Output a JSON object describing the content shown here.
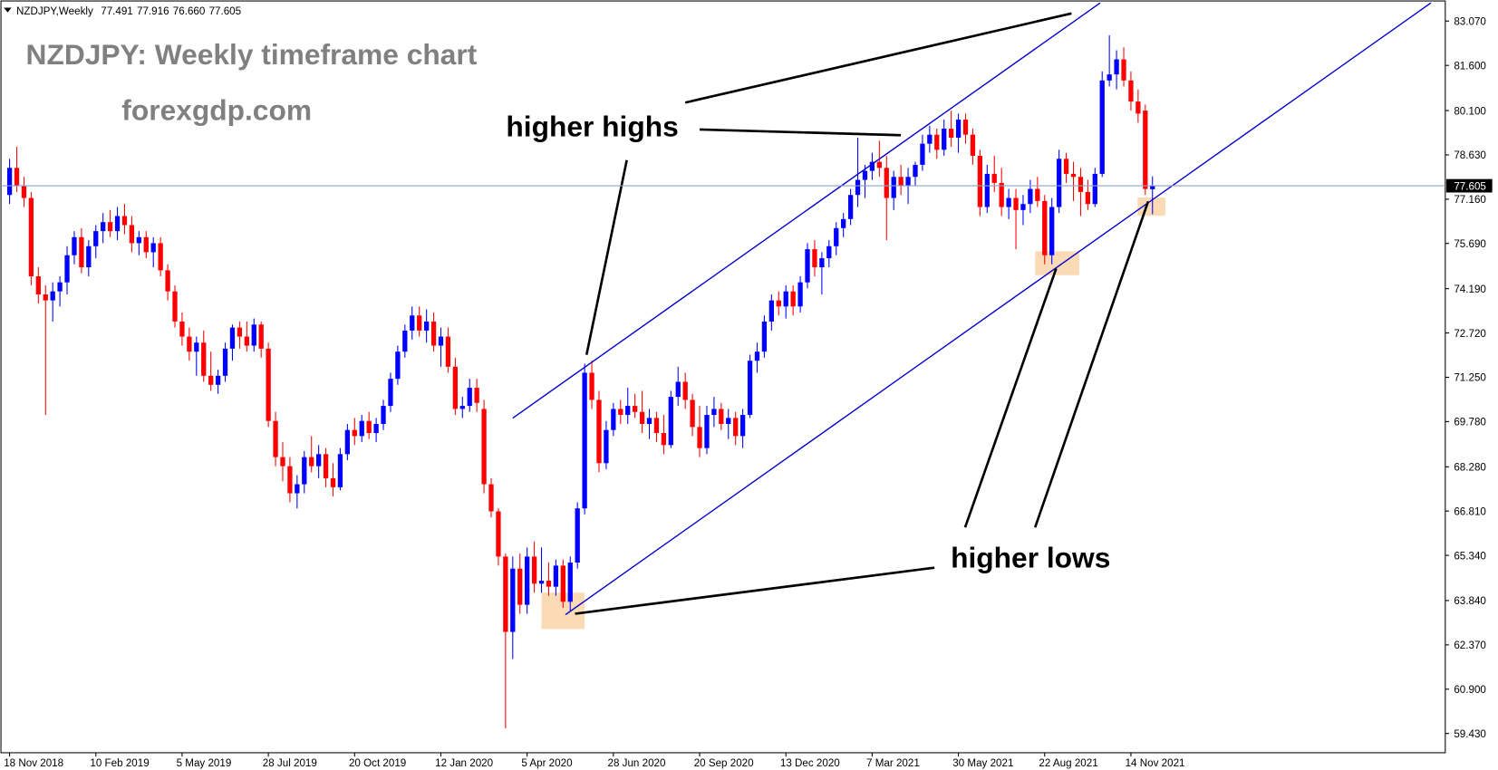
{
  "chart_data": {
    "type": "candlestick",
    "symbol": "NZDJPY,Weekly",
    "ohlc_labels": [
      "77.491",
      "77.916",
      "76.660",
      "77.605"
    ],
    "title": "NZDJPY: Weekly timeframe chart",
    "subtitle": "forexgdp.com",
    "annotations": [
      "higher highs",
      "higher lows"
    ],
    "up_color": "#0000ff",
    "down_color": "#ff0000",
    "ylim": [
      58.79,
      83.77
    ],
    "yticks": [
      {
        "value": 83.07,
        "label": "83.070"
      },
      {
        "value": 81.6,
        "label": "81.600"
      },
      {
        "value": 80.1,
        "label": "80.100"
      },
      {
        "value": 78.63,
        "label": "78.630"
      },
      {
        "value": 77.16,
        "label": "77.160"
      },
      {
        "value": 75.69,
        "label": "75.690"
      },
      {
        "value": 74.19,
        "label": "74.190"
      },
      {
        "value": 72.72,
        "label": "72.720"
      },
      {
        "value": 71.25,
        "label": "71.250"
      },
      {
        "value": 69.78,
        "label": "69.780"
      },
      {
        "value": 68.28,
        "label": "68.280"
      },
      {
        "value": 66.81,
        "label": "66.810"
      },
      {
        "value": 65.34,
        "label": "65.340"
      },
      {
        "value": 63.84,
        "label": "63.840"
      },
      {
        "value": 62.37,
        "label": "62.370"
      },
      {
        "value": 60.9,
        "label": "60.900"
      },
      {
        "value": 59.43,
        "label": "59.430"
      }
    ],
    "current_price": {
      "value": 77.605,
      "label": "77.605"
    },
    "categories": [
      "18 Nov 2018",
      null,
      null,
      null,
      null,
      null,
      null,
      null,
      null,
      null,
      null,
      null,
      "10 Feb 2019",
      null,
      null,
      null,
      null,
      null,
      null,
      null,
      null,
      null,
      null,
      null,
      "5 May 2019",
      null,
      null,
      null,
      null,
      null,
      null,
      null,
      null,
      null,
      null,
      null,
      "28 Jul 2019",
      null,
      null,
      null,
      null,
      null,
      null,
      null,
      null,
      null,
      null,
      null,
      "20 Oct 2019",
      null,
      null,
      null,
      null,
      null,
      null,
      null,
      null,
      null,
      null,
      null,
      "12 Jan 2020",
      null,
      null,
      null,
      null,
      null,
      null,
      null,
      null,
      null,
      null,
      null,
      "5 Apr 2020",
      null,
      null,
      null,
      null,
      null,
      null,
      null,
      null,
      null,
      null,
      null,
      "28 Jun 2020",
      null,
      null,
      null,
      null,
      null,
      null,
      null,
      null,
      null,
      null,
      null,
      "20 Sep 2020",
      null,
      null,
      null,
      null,
      null,
      null,
      null,
      null,
      null,
      null,
      null,
      "13 Dec 2020",
      null,
      null,
      null,
      null,
      null,
      null,
      null,
      null,
      null,
      null,
      null,
      "7 Mar 2021",
      null,
      null,
      null,
      null,
      null,
      null,
      null,
      null,
      null,
      null,
      null,
      "30 May 2021",
      null,
      null,
      null,
      null,
      null,
      null,
      null,
      null,
      null,
      null,
      null,
      "22 Aug 2021",
      null,
      null,
      null,
      null,
      null,
      null,
      null,
      null,
      null,
      null,
      null,
      "14 Nov 2021",
      null,
      null,
      null
    ],
    "candles": [
      [
        77.3,
        78.5,
        77.0,
        78.2
      ],
      [
        78.2,
        78.9,
        77.4,
        77.6
      ],
      [
        77.6,
        77.9,
        76.9,
        77.2
      ],
      [
        77.2,
        77.4,
        74.3,
        74.6
      ],
      [
        74.6,
        74.9,
        73.7,
        74.0
      ],
      [
        74.0,
        74.3,
        70.0,
        73.8
      ],
      [
        73.8,
        74.4,
        73.1,
        74.1
      ],
      [
        74.1,
        74.6,
        73.6,
        74.4
      ],
      [
        74.4,
        75.6,
        74.0,
        75.3
      ],
      [
        75.3,
        76.1,
        75.0,
        75.9
      ],
      [
        75.9,
        76.2,
        74.7,
        74.9
      ],
      [
        74.9,
        75.8,
        74.6,
        75.6
      ],
      [
        75.6,
        76.3,
        75.2,
        76.1
      ],
      [
        76.1,
        76.7,
        75.7,
        76.4
      ],
      [
        76.4,
        76.8,
        75.9,
        76.1
      ],
      [
        76.1,
        76.9,
        75.8,
        76.6
      ],
      [
        76.6,
        77.0,
        76.0,
        76.3
      ],
      [
        76.3,
        76.6,
        75.4,
        75.7
      ],
      [
        75.7,
        76.1,
        75.3,
        75.9
      ],
      [
        75.9,
        76.1,
        75.2,
        75.4
      ],
      [
        75.4,
        75.9,
        74.9,
        75.7
      ],
      [
        75.7,
        75.9,
        74.6,
        74.8
      ],
      [
        74.8,
        75.0,
        73.8,
        74.1
      ],
      [
        74.1,
        74.3,
        72.9,
        73.1
      ],
      [
        73.1,
        73.4,
        72.3,
        72.6
      ],
      [
        72.6,
        72.9,
        71.8,
        72.1
      ],
      [
        72.1,
        72.6,
        71.3,
        72.4
      ],
      [
        72.4,
        72.8,
        71.1,
        71.3
      ],
      [
        71.3,
        72.1,
        70.8,
        71.0
      ],
      [
        71.0,
        71.5,
        70.7,
        71.3
      ],
      [
        71.3,
        72.4,
        71.1,
        72.2
      ],
      [
        72.2,
        73.0,
        71.8,
        72.9
      ],
      [
        72.9,
        73.1,
        72.2,
        72.6
      ],
      [
        72.6,
        73.1,
        72.1,
        72.3
      ],
      [
        72.3,
        73.2,
        72.1,
        73.0
      ],
      [
        73.0,
        73.1,
        71.9,
        72.2
      ],
      [
        72.2,
        72.4,
        69.6,
        69.8
      ],
      [
        69.8,
        70.1,
        68.3,
        68.6
      ],
      [
        68.6,
        69.1,
        67.8,
        68.3
      ],
      [
        68.3,
        68.6,
        67.1,
        67.4
      ],
      [
        67.4,
        68.0,
        66.9,
        67.7
      ],
      [
        67.7,
        68.8,
        67.4,
        68.6
      ],
      [
        68.6,
        69.3,
        68.1,
        68.3
      ],
      [
        68.3,
        69.0,
        67.9,
        68.7
      ],
      [
        68.7,
        68.9,
        67.6,
        67.9
      ],
      [
        67.9,
        68.4,
        67.3,
        67.6
      ],
      [
        67.6,
        68.9,
        67.5,
        68.7
      ],
      [
        68.7,
        69.7,
        68.5,
        69.5
      ],
      [
        69.5,
        69.9,
        69.0,
        69.3
      ],
      [
        69.3,
        70.0,
        69.1,
        69.8
      ],
      [
        69.8,
        70.1,
        69.2,
        69.4
      ],
      [
        69.4,
        69.9,
        69.1,
        69.7
      ],
      [
        69.7,
        70.5,
        69.5,
        70.3
      ],
      [
        70.3,
        71.4,
        70.1,
        71.2
      ],
      [
        71.2,
        72.3,
        71.0,
        72.1
      ],
      [
        72.1,
        73.0,
        71.9,
        72.8
      ],
      [
        72.8,
        73.6,
        72.5,
        73.3
      ],
      [
        73.3,
        73.6,
        72.6,
        72.8
      ],
      [
        72.8,
        73.5,
        72.4,
        73.1
      ],
      [
        73.1,
        73.4,
        72.1,
        72.3
      ],
      [
        72.3,
        72.9,
        71.6,
        72.6
      ],
      [
        72.6,
        72.9,
        71.4,
        71.6
      ],
      [
        71.6,
        71.9,
        70.0,
        70.2
      ],
      [
        70.2,
        70.6,
        69.9,
        70.3
      ],
      [
        70.3,
        71.2,
        70.1,
        70.9
      ],
      [
        70.9,
        71.2,
        70.1,
        70.4
      ],
      [
        70.2,
        70.5,
        67.4,
        67.7
      ],
      [
        67.7,
        67.9,
        66.6,
        66.8
      ],
      [
        66.8,
        66.9,
        65.0,
        65.3
      ],
      [
        65.3,
        65.4,
        59.6,
        62.8
      ],
      [
        62.8,
        65.3,
        61.9,
        64.9
      ],
      [
        64.9,
        65.4,
        63.4,
        63.7
      ],
      [
        63.7,
        65.6,
        63.4,
        65.3
      ],
      [
        65.3,
        65.8,
        64.1,
        64.4
      ],
      [
        64.4,
        65.6,
        64.1,
        64.5
      ],
      [
        64.5,
        65.1,
        64.0,
        64.3
      ],
      [
        64.3,
        65.2,
        64.0,
        65.0
      ],
      [
        65.0,
        65.2,
        63.6,
        63.8
      ],
      [
        63.8,
        65.3,
        63.5,
        65.1
      ],
      [
        65.1,
        67.1,
        64.9,
        66.9
      ],
      [
        66.9,
        71.7,
        66.7,
        71.4
      ],
      [
        71.4,
        71.8,
        70.2,
        70.5
      ],
      [
        70.5,
        70.8,
        68.1,
        68.4
      ],
      [
        68.4,
        69.8,
        68.2,
        69.5
      ],
      [
        69.5,
        70.4,
        69.3,
        70.2
      ],
      [
        70.2,
        70.5,
        69.7,
        70.0
      ],
      [
        70.0,
        70.9,
        69.7,
        70.3
      ],
      [
        70.3,
        70.7,
        69.9,
        70.1
      ],
      [
        70.1,
        70.8,
        69.4,
        69.7
      ],
      [
        69.7,
        70.2,
        69.2,
        69.9
      ],
      [
        69.9,
        70.1,
        69.1,
        69.4
      ],
      [
        69.4,
        70.0,
        68.7,
        69.0
      ],
      [
        69.0,
        70.8,
        68.9,
        70.6
      ],
      [
        70.6,
        71.6,
        70.3,
        71.1
      ],
      [
        71.1,
        71.4,
        70.2,
        70.5
      ],
      [
        70.5,
        70.7,
        69.3,
        69.6
      ],
      [
        69.6,
        70.3,
        68.6,
        68.9
      ],
      [
        68.9,
        70.3,
        68.7,
        70.0
      ],
      [
        70.0,
        70.6,
        69.6,
        70.2
      ],
      [
        70.2,
        70.4,
        69.5,
        69.7
      ],
      [
        69.7,
        70.2,
        69.2,
        69.9
      ],
      [
        69.9,
        70.1,
        69.0,
        69.3
      ],
      [
        69.3,
        70.2,
        68.9,
        70.0
      ],
      [
        70.0,
        72.0,
        69.9,
        71.8
      ],
      [
        71.8,
        72.4,
        71.4,
        72.1
      ],
      [
        72.1,
        73.3,
        71.9,
        73.1
      ],
      [
        73.1,
        74.0,
        72.8,
        73.8
      ],
      [
        73.8,
        74.1,
        73.3,
        73.6
      ],
      [
        73.6,
        74.3,
        73.2,
        74.1
      ],
      [
        74.1,
        74.3,
        73.3,
        73.6
      ],
      [
        73.6,
        74.6,
        73.4,
        74.4
      ],
      [
        74.4,
        75.7,
        74.2,
        75.5
      ],
      [
        75.5,
        75.8,
        74.6,
        74.9
      ],
      [
        74.9,
        75.4,
        74.0,
        75.2
      ],
      [
        75.2,
        75.8,
        74.9,
        75.6
      ],
      [
        75.6,
        76.4,
        75.3,
        76.2
      ],
      [
        76.2,
        76.7,
        75.9,
        76.5
      ],
      [
        76.5,
        77.5,
        76.3,
        77.3
      ],
      [
        77.3,
        79.2,
        76.9,
        77.8
      ],
      [
        77.8,
        78.3,
        77.2,
        78.1
      ],
      [
        78.1,
        78.7,
        77.8,
        78.4
      ],
      [
        78.4,
        79.1,
        77.9,
        78.2
      ],
      [
        78.2,
        78.6,
        75.8,
        77.2
      ],
      [
        77.2,
        78.1,
        76.8,
        77.9
      ],
      [
        77.9,
        78.3,
        77.3,
        77.6
      ],
      [
        77.6,
        78.2,
        77.0,
        77.9
      ],
      [
        77.9,
        78.4,
        77.6,
        78.3
      ],
      [
        78.3,
        79.3,
        78.1,
        79.0
      ],
      [
        79.0,
        79.6,
        78.7,
        79.3
      ],
      [
        79.3,
        79.5,
        78.5,
        78.8
      ],
      [
        78.8,
        79.8,
        78.6,
        79.5
      ],
      [
        79.5,
        80.1,
        78.9,
        79.2
      ],
      [
        79.2,
        80.0,
        78.7,
        79.8
      ],
      [
        79.8,
        80.0,
        79.0,
        79.3
      ],
      [
        79.3,
        79.5,
        78.3,
        78.6
      ],
      [
        78.6,
        78.8,
        76.6,
        76.9
      ],
      [
        76.9,
        78.3,
        76.7,
        78.0
      ],
      [
        78.0,
        78.6,
        77.4,
        77.7
      ],
      [
        77.7,
        78.2,
        76.6,
        76.9
      ],
      [
        76.9,
        77.5,
        76.5,
        77.2
      ],
      [
        77.2,
        77.5,
        75.5,
        76.8
      ],
      [
        76.8,
        77.3,
        76.3,
        77.0
      ],
      [
        77.0,
        77.8,
        76.7,
        77.5
      ],
      [
        77.5,
        77.9,
        76.9,
        77.1
      ],
      [
        77.1,
        77.3,
        75.0,
        75.3
      ],
      [
        75.3,
        77.2,
        75.0,
        76.9
      ],
      [
        76.9,
        78.8,
        76.7,
        78.5
      ],
      [
        78.5,
        78.7,
        77.7,
        78.0
      ],
      [
        78.0,
        78.4,
        77.1,
        77.9
      ],
      [
        77.9,
        78.2,
        76.6,
        77.4
      ],
      [
        77.4,
        77.8,
        76.8,
        77.0
      ],
      [
        77.0,
        78.2,
        76.9,
        78.0
      ],
      [
        78.0,
        81.4,
        77.9,
        81.1
      ],
      [
        81.1,
        82.6,
        80.9,
        81.3
      ],
      [
        81.3,
        82.1,
        80.8,
        81.8
      ],
      [
        81.8,
        82.2,
        80.9,
        81.1
      ],
      [
        81.1,
        81.4,
        80.1,
        80.4
      ],
      [
        80.4,
        80.8,
        79.7,
        80.0
      ],
      [
        80.1,
        80.3,
        77.3,
        77.5
      ],
      [
        77.491,
        77.916,
        76.66,
        77.605
      ]
    ]
  }
}
